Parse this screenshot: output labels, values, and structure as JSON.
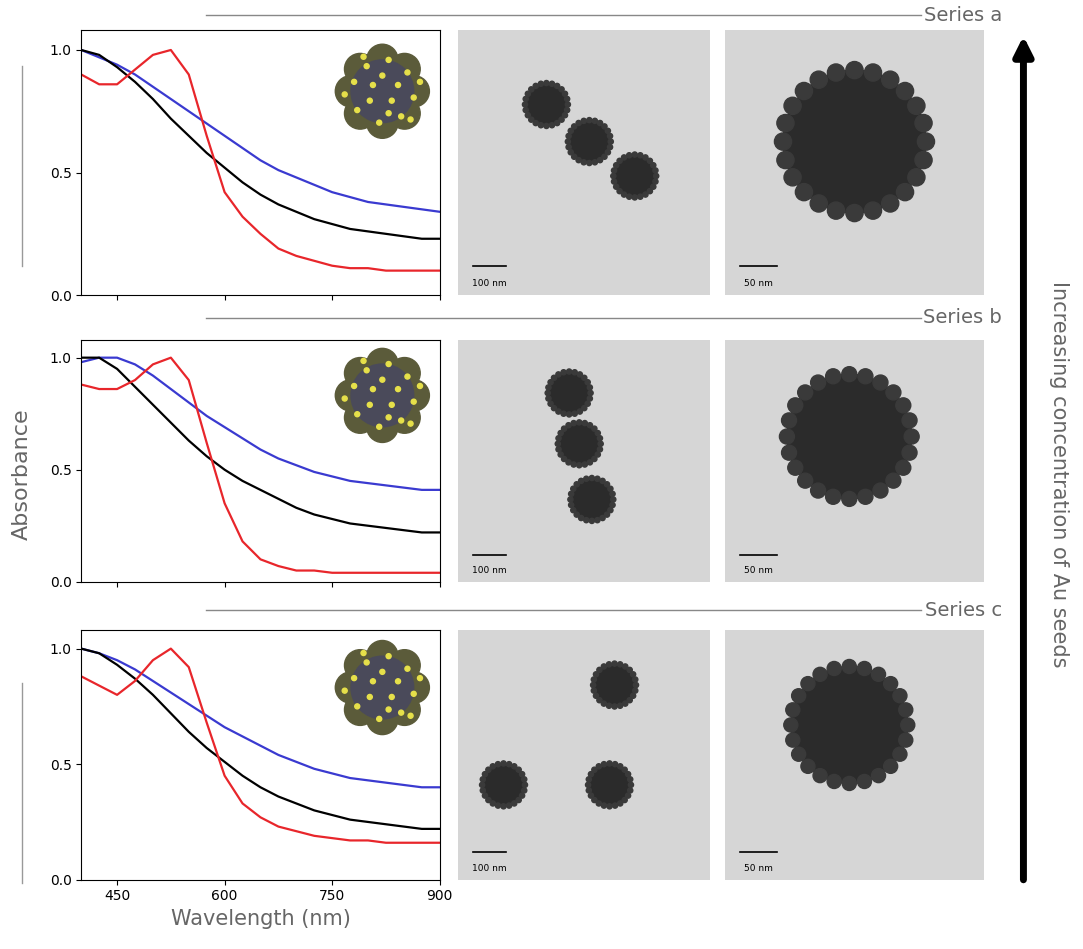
{
  "chart_data": [
    {
      "type": "line",
      "x": [
        400,
        425,
        450,
        475,
        500,
        525,
        550,
        575,
        600,
        625,
        650,
        675,
        700,
        725,
        750,
        775,
        800,
        825,
        850,
        875,
        900
      ],
      "series": [
        {
          "color": "#3a3ad0",
          "line_style": "solid",
          "values": [
            1.0,
            0.97,
            0.94,
            0.9,
            0.85,
            0.8,
            0.75,
            0.7,
            0.65,
            0.6,
            0.55,
            0.51,
            0.48,
            0.45,
            0.42,
            0.4,
            0.38,
            0.37,
            0.36,
            0.35,
            0.34
          ]
        },
        {
          "color": "#000000",
          "line_style": "solid",
          "values": [
            1.0,
            0.98,
            0.93,
            0.87,
            0.8,
            0.72,
            0.65,
            0.58,
            0.52,
            0.46,
            0.41,
            0.37,
            0.34,
            0.31,
            0.29,
            0.27,
            0.26,
            0.25,
            0.24,
            0.23,
            0.23
          ]
        },
        {
          "color": "#e8262b",
          "line_style": "solid",
          "values": [
            0.9,
            0.86,
            0.86,
            0.92,
            0.98,
            1.0,
            0.9,
            0.65,
            0.42,
            0.32,
            0.25,
            0.19,
            0.16,
            0.14,
            0.12,
            0.11,
            0.11,
            0.1,
            0.1,
            0.1,
            0.1
          ]
        }
      ],
      "xlim": [
        400,
        900
      ],
      "xticks": [
        450,
        600,
        750,
        900
      ],
      "ylim": [
        0,
        1.08
      ],
      "yticks": [
        {
          "value": 0,
          "label": "0.0"
        },
        {
          "value": 0.5,
          "label": "0.5"
        },
        {
          "value": 1,
          "label": "1.0"
        }
      ],
      "tick_labels": "y"
    },
    {
      "type": "line",
      "x": [
        400,
        425,
        450,
        475,
        500,
        525,
        550,
        575,
        600,
        625,
        650,
        675,
        700,
        725,
        750,
        775,
        800,
        825,
        850,
        875,
        900
      ],
      "series": [
        {
          "color": "#3a3ad0",
          "line_style": "solid",
          "values": [
            0.98,
            1.0,
            1.0,
            0.97,
            0.92,
            0.86,
            0.8,
            0.74,
            0.69,
            0.64,
            0.59,
            0.55,
            0.52,
            0.49,
            0.47,
            0.45,
            0.44,
            0.43,
            0.42,
            0.41,
            0.41
          ]
        },
        {
          "color": "#000000",
          "line_style": "solid",
          "values": [
            1.0,
            1.0,
            0.95,
            0.87,
            0.79,
            0.71,
            0.63,
            0.56,
            0.5,
            0.45,
            0.41,
            0.37,
            0.33,
            0.3,
            0.28,
            0.26,
            0.25,
            0.24,
            0.23,
            0.22,
            0.22
          ]
        },
        {
          "color": "#e8262b",
          "line_style": "solid",
          "values": [
            0.88,
            0.86,
            0.86,
            0.9,
            0.97,
            1.0,
            0.9,
            0.62,
            0.35,
            0.18,
            0.1,
            0.07,
            0.05,
            0.05,
            0.04,
            0.04,
            0.04,
            0.04,
            0.04,
            0.04,
            0.04
          ]
        }
      ],
      "xlim": [
        400,
        900
      ],
      "xticks": [
        450,
        600,
        750,
        900
      ],
      "ylim": [
        0,
        1.08
      ],
      "yticks": [
        {
          "value": 0,
          "label": "0.0"
        },
        {
          "value": 0.5,
          "label": "0.5"
        },
        {
          "value": 1,
          "label": "1.0"
        }
      ],
      "tick_labels": "y"
    },
    {
      "type": "line",
      "x_label": "Wavelength (nm)",
      "x": [
        400,
        425,
        450,
        475,
        500,
        525,
        550,
        575,
        600,
        625,
        650,
        675,
        700,
        725,
        750,
        775,
        800,
        825,
        850,
        875,
        900
      ],
      "series": [
        {
          "color": "#3a3ad0",
          "line_style": "solid",
          "values": [
            1.0,
            0.98,
            0.95,
            0.91,
            0.86,
            0.81,
            0.76,
            0.71,
            0.66,
            0.62,
            0.58,
            0.54,
            0.51,
            0.48,
            0.46,
            0.44,
            0.43,
            0.42,
            0.41,
            0.4,
            0.4
          ]
        },
        {
          "color": "#000000",
          "line_style": "solid",
          "values": [
            1.0,
            0.98,
            0.93,
            0.87,
            0.8,
            0.72,
            0.64,
            0.57,
            0.51,
            0.45,
            0.4,
            0.36,
            0.33,
            0.3,
            0.28,
            0.26,
            0.25,
            0.24,
            0.23,
            0.22,
            0.22
          ]
        },
        {
          "color": "#e8262b",
          "line_style": "solid",
          "values": [
            0.88,
            0.84,
            0.8,
            0.86,
            0.95,
            1.0,
            0.92,
            0.68,
            0.45,
            0.33,
            0.27,
            0.23,
            0.21,
            0.19,
            0.18,
            0.17,
            0.17,
            0.16,
            0.16,
            0.16,
            0.16
          ]
        }
      ],
      "xlim": [
        400,
        900
      ],
      "xticks": [
        450,
        600,
        750,
        900
      ],
      "ylim": [
        0,
        1.08
      ],
      "yticks": [
        {
          "value": 0,
          "label": "0.0"
        },
        {
          "value": 0.5,
          "label": "0.5"
        },
        {
          "value": 1,
          "label": "1.0"
        }
      ]
    }
  ],
  "y_label": "Absorbance",
  "row_labels": [
    "Series a",
    "Series b",
    "Series c"
  ],
  "side_label": "Increasing concentration of Au seeds",
  "tem_images": [
    {
      "scale_bars": [
        "100 nm",
        "50 nm"
      ]
    },
    {
      "scale_bars": [
        "100 nm",
        "50 nm"
      ]
    },
    {
      "scale_bars": [
        "100 nm",
        "50 nm"
      ]
    }
  ]
}
